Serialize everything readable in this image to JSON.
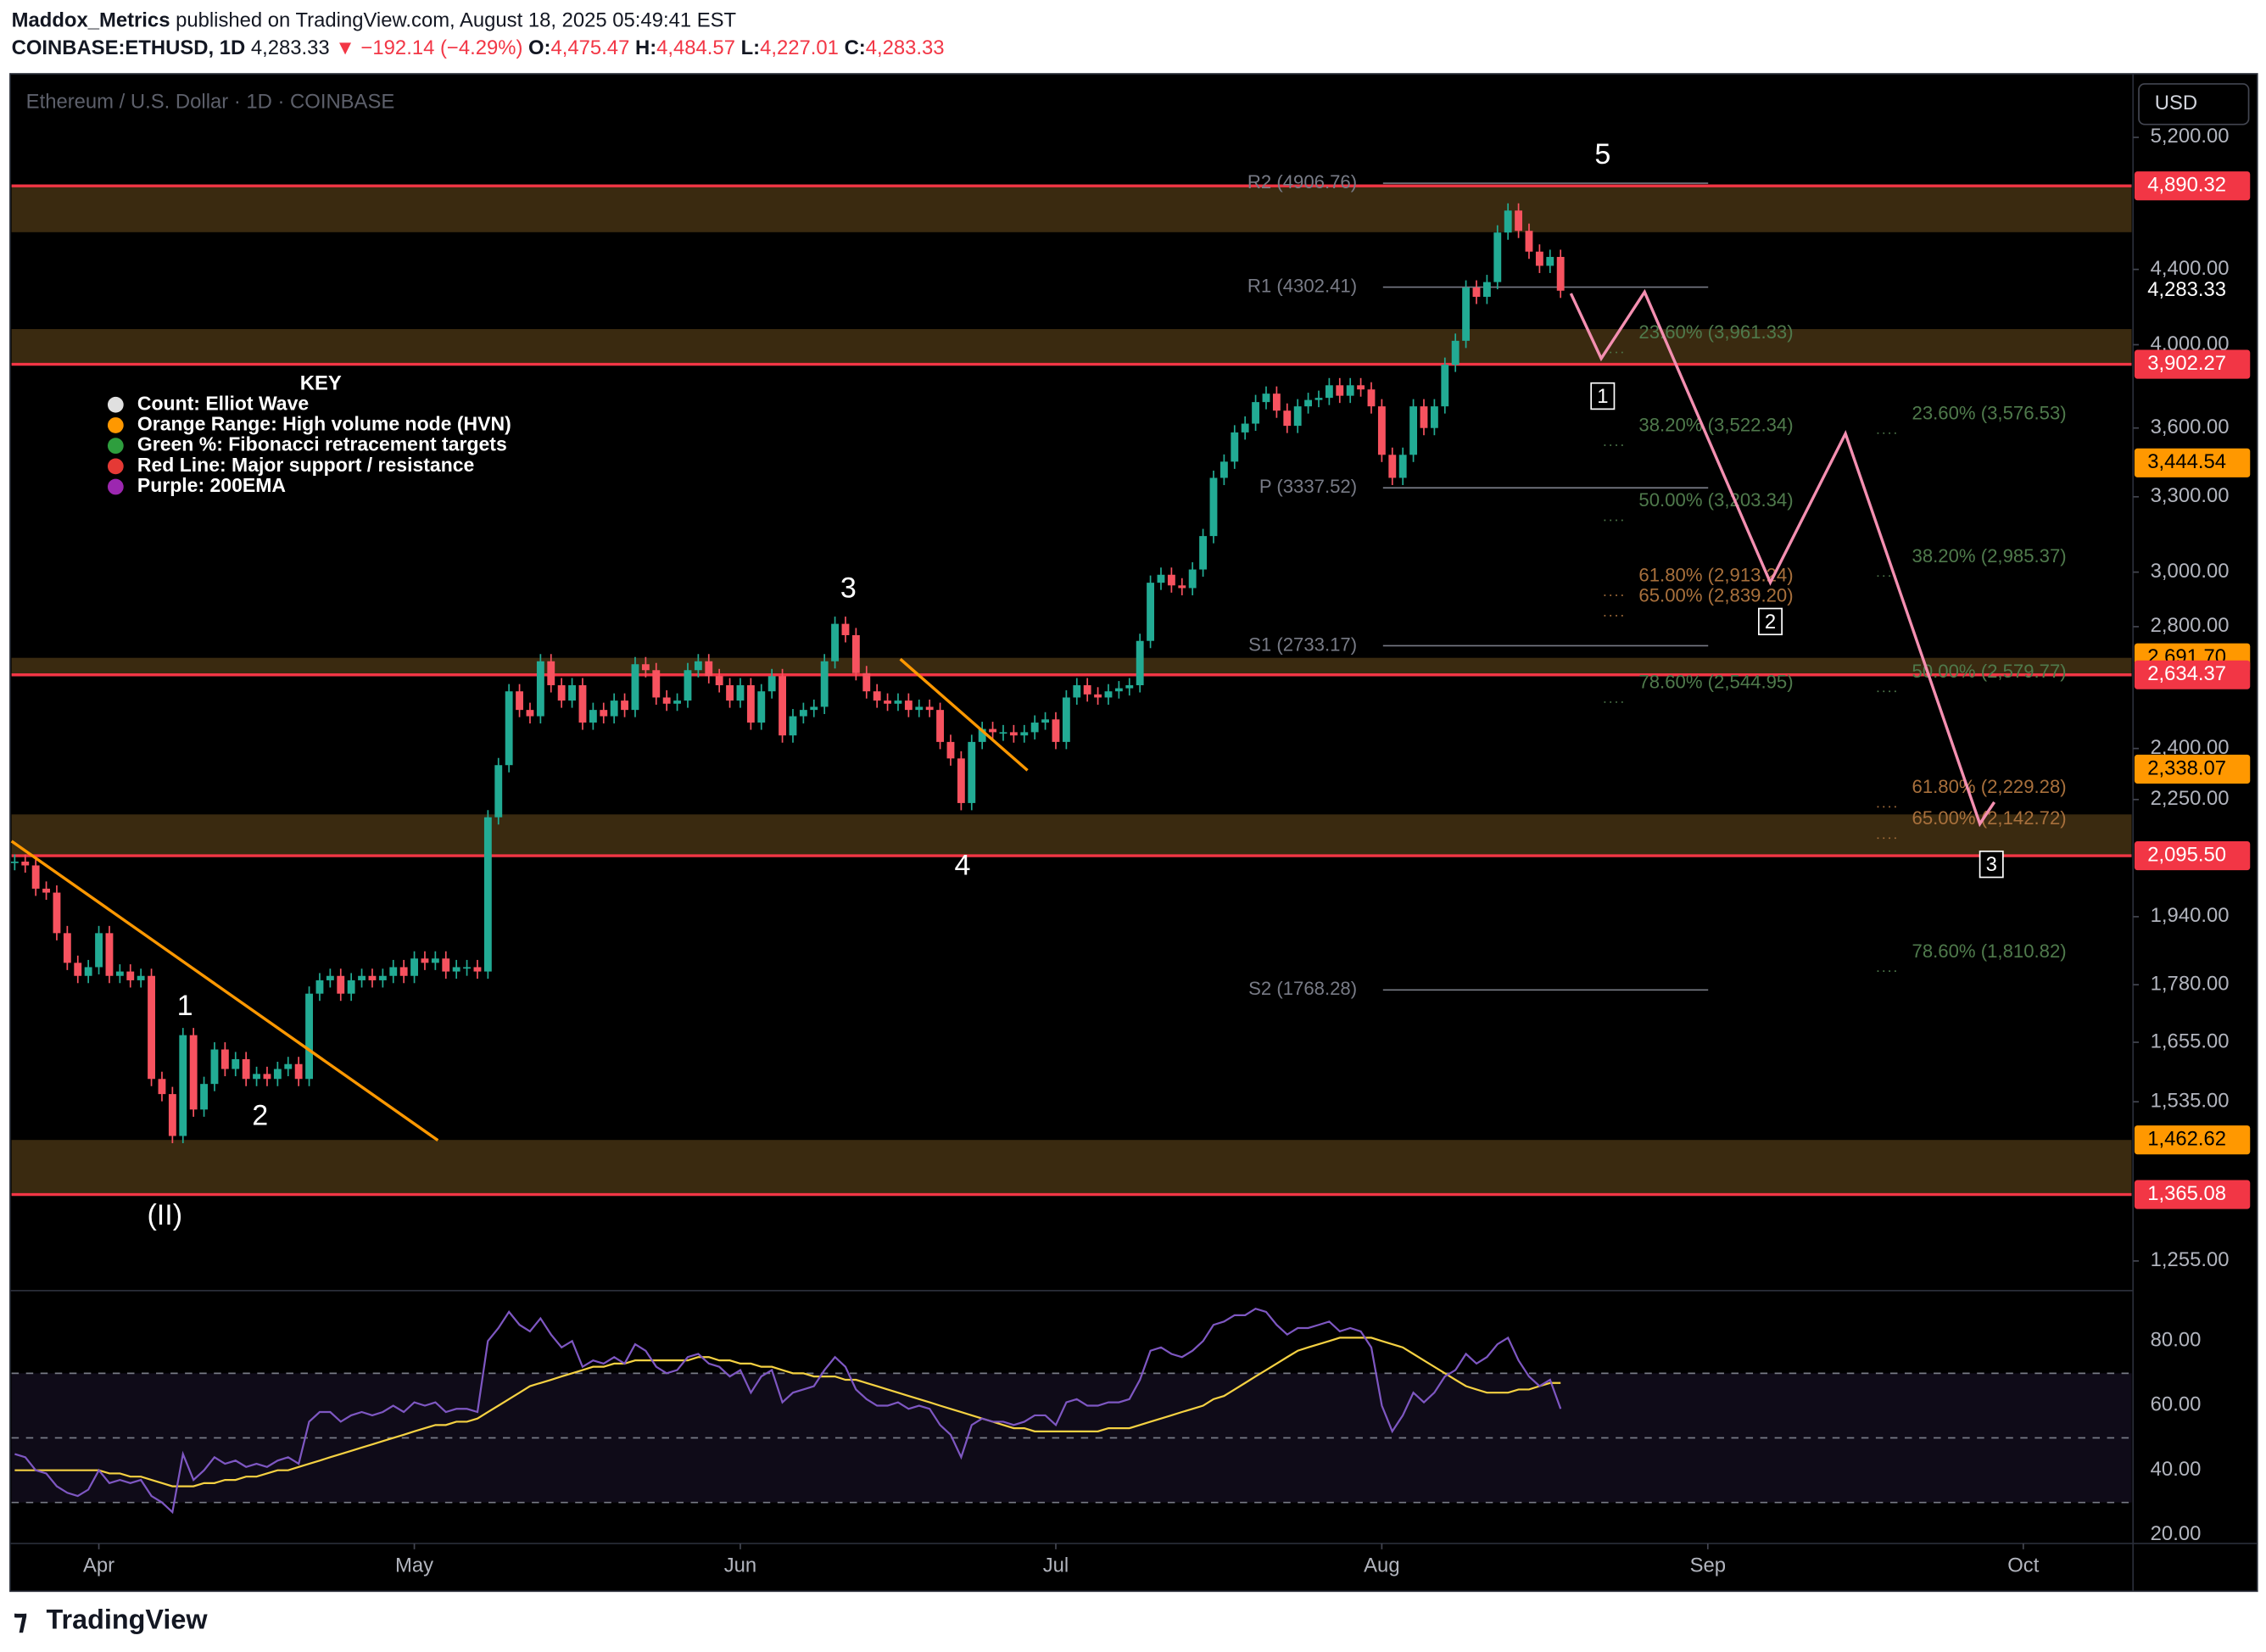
{
  "header": {
    "author": "Maddox_Metrics",
    "published": "published on TradingView.com, August 18, 2025 05:49:41 EST",
    "symbol": "COINBASE:ETHUSD, 1D",
    "last": "4,283.33",
    "change": "▼ −192.14 (−4.29%)",
    "open_label": "O:",
    "open": "4,475.47",
    "high_label": "H:",
    "high": "4,484.57",
    "low_label": "L:",
    "low": "4,227.01",
    "close_label": "C:",
    "close": "4,283.33"
  },
  "footer": {
    "brand": "TradingView"
  },
  "chart_data": {
    "type": "candlestick",
    "title": "Ethereum / U.S. Dollar · 1D · COINBASE",
    "currency": "USD",
    "log_scale": true,
    "up_color": "#22ab94",
    "down_color": "#f7525f",
    "xlim": [
      -8.3,
      193.3
    ],
    "xticks": [
      {
        "value": 0,
        "label": "Apr"
      },
      {
        "value": 30,
        "label": "May"
      },
      {
        "value": 61,
        "label": "Jun"
      },
      {
        "value": 91,
        "label": "Jul"
      },
      {
        "value": 122,
        "label": "Aug"
      },
      {
        "value": 153,
        "label": "Sep"
      },
      {
        "value": 183,
        "label": "Oct"
      }
    ],
    "ylim": [
      1211,
      5625
    ],
    "yticks": [
      {
        "value": 5200,
        "label": "5,200.00"
      },
      {
        "value": 4400,
        "label": "4,400.00"
      },
      {
        "value": 4000,
        "label": "4,000.00"
      },
      {
        "value": 3600,
        "label": "3,600.00"
      },
      {
        "value": 3300,
        "label": "3,300.00"
      },
      {
        "value": 3000,
        "label": "3,000.00"
      },
      {
        "value": 2800,
        "label": "2,800.00"
      },
      {
        "value": 2400,
        "label": "2,400.00"
      },
      {
        "value": 2250,
        "label": "2,250.00"
      },
      {
        "value": 1940,
        "label": "1,940.00"
      },
      {
        "value": 1780,
        "label": "1,780.00"
      },
      {
        "value": 1655,
        "label": "1,655.00"
      },
      {
        "value": 1535,
        "label": "1,535.00"
      },
      {
        "value": 1255,
        "label": "1,255.00"
      }
    ],
    "values": [
      2080,
      2070,
      2010,
      2000,
      1900,
      1830,
      1800,
      1820,
      1900,
      1800,
      1810,
      1790,
      1800,
      1580,
      1550,
      1470,
      1670,
      1520,
      1570,
      1640,
      1600,
      1620,
      1580,
      1590,
      1580,
      1600,
      1610,
      1580,
      1760,
      1790,
      1800,
      1760,
      1790,
      1800,
      1790,
      1800,
      1820,
      1800,
      1840,
      1830,
      1840,
      1810,
      1820,
      1820,
      1810,
      2200,
      2350,
      2580,
      2520,
      2500,
      2680,
      2600,
      2550,
      2600,
      2480,
      2520,
      2500,
      2550,
      2520,
      2670,
      2650,
      2560,
      2540,
      2550,
      2650,
      2680,
      2630,
      2600,
      2550,
      2600,
      2480,
      2580,
      2630,
      2440,
      2500,
      2520,
      2530,
      2680,
      2810,
      2770,
      2640,
      2580,
      2550,
      2540,
      2550,
      2520,
      2530,
      2520,
      2420,
      2370,
      2240,
      2420,
      2460,
      2450,
      2450,
      2440,
      2450,
      2480,
      2490,
      2420,
      2560,
      2600,
      2570,
      2560,
      2580,
      2590,
      2600,
      2750,
      2960,
      2990,
      2950,
      2940,
      3010,
      3140,
      3380,
      3450,
      3580,
      3620,
      3720,
      3760,
      3680,
      3610,
      3700,
      3730,
      3740,
      3800,
      3750,
      3800,
      3780,
      3700,
      3480,
      3380,
      3480,
      3700,
      3600,
      3700,
      3900,
      4020,
      4300,
      4250,
      4330,
      4610,
      4740,
      4620,
      4500,
      4420,
      4470,
      4283
    ],
    "last_price": {
      "value": 4283.33,
      "label": "4,283.33"
    },
    "zone_color": "#3a2a10",
    "zones": [
      [
        4612,
        4890.32
      ],
      [
        3902.27,
        4080
      ],
      [
        2634.37,
        2691.7
      ],
      [
        2095.5,
        2208
      ],
      [
        1365.08,
        1462.62
      ]
    ],
    "line_color": "#f23645",
    "lines": [
      4890.32,
      3902.27,
      2634.37,
      2095.5,
      1365.08
    ],
    "price_labels": [
      {
        "value": 4890.32,
        "label": "4,890.32",
        "color": "#f23645"
      },
      {
        "value": 3902.27,
        "label": "3,902.27",
        "color": "#f23645"
      },
      {
        "value": 3444.54,
        "label": "3,444.54",
        "color": "#ff9800"
      },
      {
        "value": 2691.7,
        "label": "2,691.70",
        "color": "#ff9800"
      },
      {
        "value": 2634.37,
        "label": "2,634.37",
        "color": "#f23645"
      },
      {
        "value": 2338.07,
        "label": "2,338.07",
        "color": "#ff9800"
      },
      {
        "value": 2095.5,
        "label": "2,095.50",
        "color": "#f23645"
      },
      {
        "value": 1462.62,
        "label": "1,462.62",
        "color": "#ff9800"
      },
      {
        "value": 1365.08,
        "label": "1,365.08",
        "color": "#f23645"
      }
    ],
    "pivots": [
      {
        "value": 4906.76,
        "label": "R2 (4906.76)"
      },
      {
        "value": 4302.41,
        "label": "R1 (4302.41)"
      },
      {
        "value": 3337.52,
        "label": "P (3337.52)"
      },
      {
        "value": 2733.17,
        "label": "S1 (2733.17)"
      },
      {
        "value": 1768.28,
        "label": "S2 (1768.28)"
      }
    ],
    "fib_sets": [
      [
        {
          "value": 3961.33,
          "label": "23.60% (3,961.33)",
          "color": "#4f7a4c"
        },
        {
          "value": 3522.34,
          "label": "38.20% (3,522.34)",
          "color": "#4f7a4c"
        },
        {
          "value": 3203.34,
          "label": "50.00% (3,203.34)",
          "color": "#4f7a4c"
        },
        {
          "value": 2913.24,
          "label": "61.80% (2,913.24)",
          "color": "#a8703c"
        },
        {
          "value": 2839.2,
          "label": "65.00% (2,839.20)",
          "color": "#a8703c"
        },
        {
          "value": 2544.95,
          "label": "78.60% (2,544.95)",
          "color": "#4f7a4c"
        }
      ],
      [
        {
          "value": 3576.53,
          "label": "23.60% (3,576.53)",
          "color": "#4f7a4c"
        },
        {
          "value": 2985.37,
          "label": "38.20% (2,985.37)",
          "color": "#4f7a4c"
        },
        {
          "value": 2579.77,
          "label": "50.00% (2,579.77)",
          "color": "#4f7a4c"
        },
        {
          "value": 2229.28,
          "label": "61.80% (2,229.28)",
          "color": "#a8703c"
        },
        {
          "value": 2142.72,
          "label": "65.00% (2,142.72)",
          "color": "#a8703c"
        },
        {
          "value": 1810.82,
          "label": "78.60% (1,810.82)",
          "color": "#4f7a4c"
        }
      ]
    ],
    "waves": [
      "5",
      "3",
      "4",
      "1",
      "2",
      "(II)"
    ],
    "projection": [
      "1",
      "2",
      "3"
    ],
    "key": {
      "title": "KEY",
      "items": [
        {
          "label": "Count: Elliot Wave",
          "color": "#e0e0e0"
        },
        {
          "label": "Orange Range: High volume node (HVN)",
          "color": "#ff9800"
        },
        {
          "label": "Green %: Fibonacci retracement targets",
          "color": "#2e9e3e"
        },
        {
          "label": "Red Line: Major support / resistance",
          "color": "#e53935"
        },
        {
          "label": "Purple: 200EMA",
          "color": "#9c27b0"
        }
      ]
    },
    "rsi": {
      "color": "#7e57c2",
      "ma_color": "#f5d142",
      "ylim": [
        17.3,
        94.7
      ],
      "yticks": [
        {
          "value": 80,
          "label": "80.00"
        },
        {
          "value": 60,
          "label": "60.00"
        },
        {
          "value": 40,
          "label": "40.00"
        },
        {
          "value": 20,
          "label": "20.00"
        }
      ],
      "bands": [
        70,
        50,
        30
      ],
      "values": [
        45,
        44,
        40,
        39,
        35,
        33,
        32,
        34,
        40,
        36,
        37,
        36,
        37,
        32,
        30,
        27,
        45,
        37,
        40,
        44,
        42,
        43,
        41,
        42,
        41,
        43,
        44,
        42,
        55,
        58,
        58,
        55,
        57,
        58,
        57,
        58,
        60,
        58,
        61,
        60,
        61,
        58,
        59,
        59,
        58,
        80,
        84,
        89,
        85,
        83,
        87,
        82,
        78,
        80,
        72,
        74,
        73,
        75,
        73,
        79,
        77,
        72,
        70,
        71,
        75,
        76,
        73,
        72,
        69,
        71,
        64,
        69,
        71,
        61,
        64,
        65,
        66,
        71,
        75,
        72,
        65,
        62,
        60,
        60,
        61,
        59,
        60,
        59,
        54,
        51,
        44,
        54,
        56,
        55,
        55,
        54,
        55,
        57,
        57,
        54,
        61,
        62,
        60,
        60,
        61,
        61,
        62,
        68,
        77,
        78,
        76,
        75,
        77,
        80,
        85,
        86,
        88,
        88,
        90,
        89,
        85,
        82,
        84,
        84,
        85,
        86,
        83,
        84,
        83,
        78,
        60,
        52,
        57,
        64,
        61,
        64,
        69,
        71,
        76,
        73,
        75,
        79,
        81,
        74,
        69,
        66,
        68,
        59
      ],
      "ma": [
        40,
        40,
        40,
        40,
        40,
        40,
        40,
        40,
        40,
        39,
        39,
        38,
        38,
        37,
        36,
        35,
        35,
        35,
        36,
        36,
        37,
        37,
        38,
        38,
        39,
        40,
        40,
        41,
        42,
        43,
        44,
        45,
        46,
        47,
        48,
        49,
        50,
        51,
        52,
        53,
        54,
        54,
        55,
        55,
        56,
        58,
        60,
        62,
        64,
        66,
        67,
        68,
        69,
        70,
        71,
        72,
        72,
        73,
        73,
        74,
        74,
        74,
        74,
        74,
        74,
        75,
        75,
        74,
        74,
        73,
        73,
        72,
        72,
        71,
        70,
        70,
        69,
        69,
        69,
        68,
        68,
        67,
        66,
        65,
        64,
        63,
        62,
        61,
        60,
        59,
        58,
        57,
        56,
        55,
        54,
        53,
        53,
        52,
        52,
        52,
        52,
        52,
        52,
        52,
        53,
        53,
        53,
        54,
        55,
        56,
        57,
        58,
        59,
        60,
        62,
        63,
        65,
        67,
        69,
        71,
        73,
        75,
        77,
        78,
        79,
        80,
        81,
        81,
        81,
        81,
        80,
        79,
        78,
        76,
        74,
        72,
        70,
        68,
        66,
        65,
        64,
        64,
        64,
        65,
        65,
        66,
        67,
        67
      ]
    }
  }
}
